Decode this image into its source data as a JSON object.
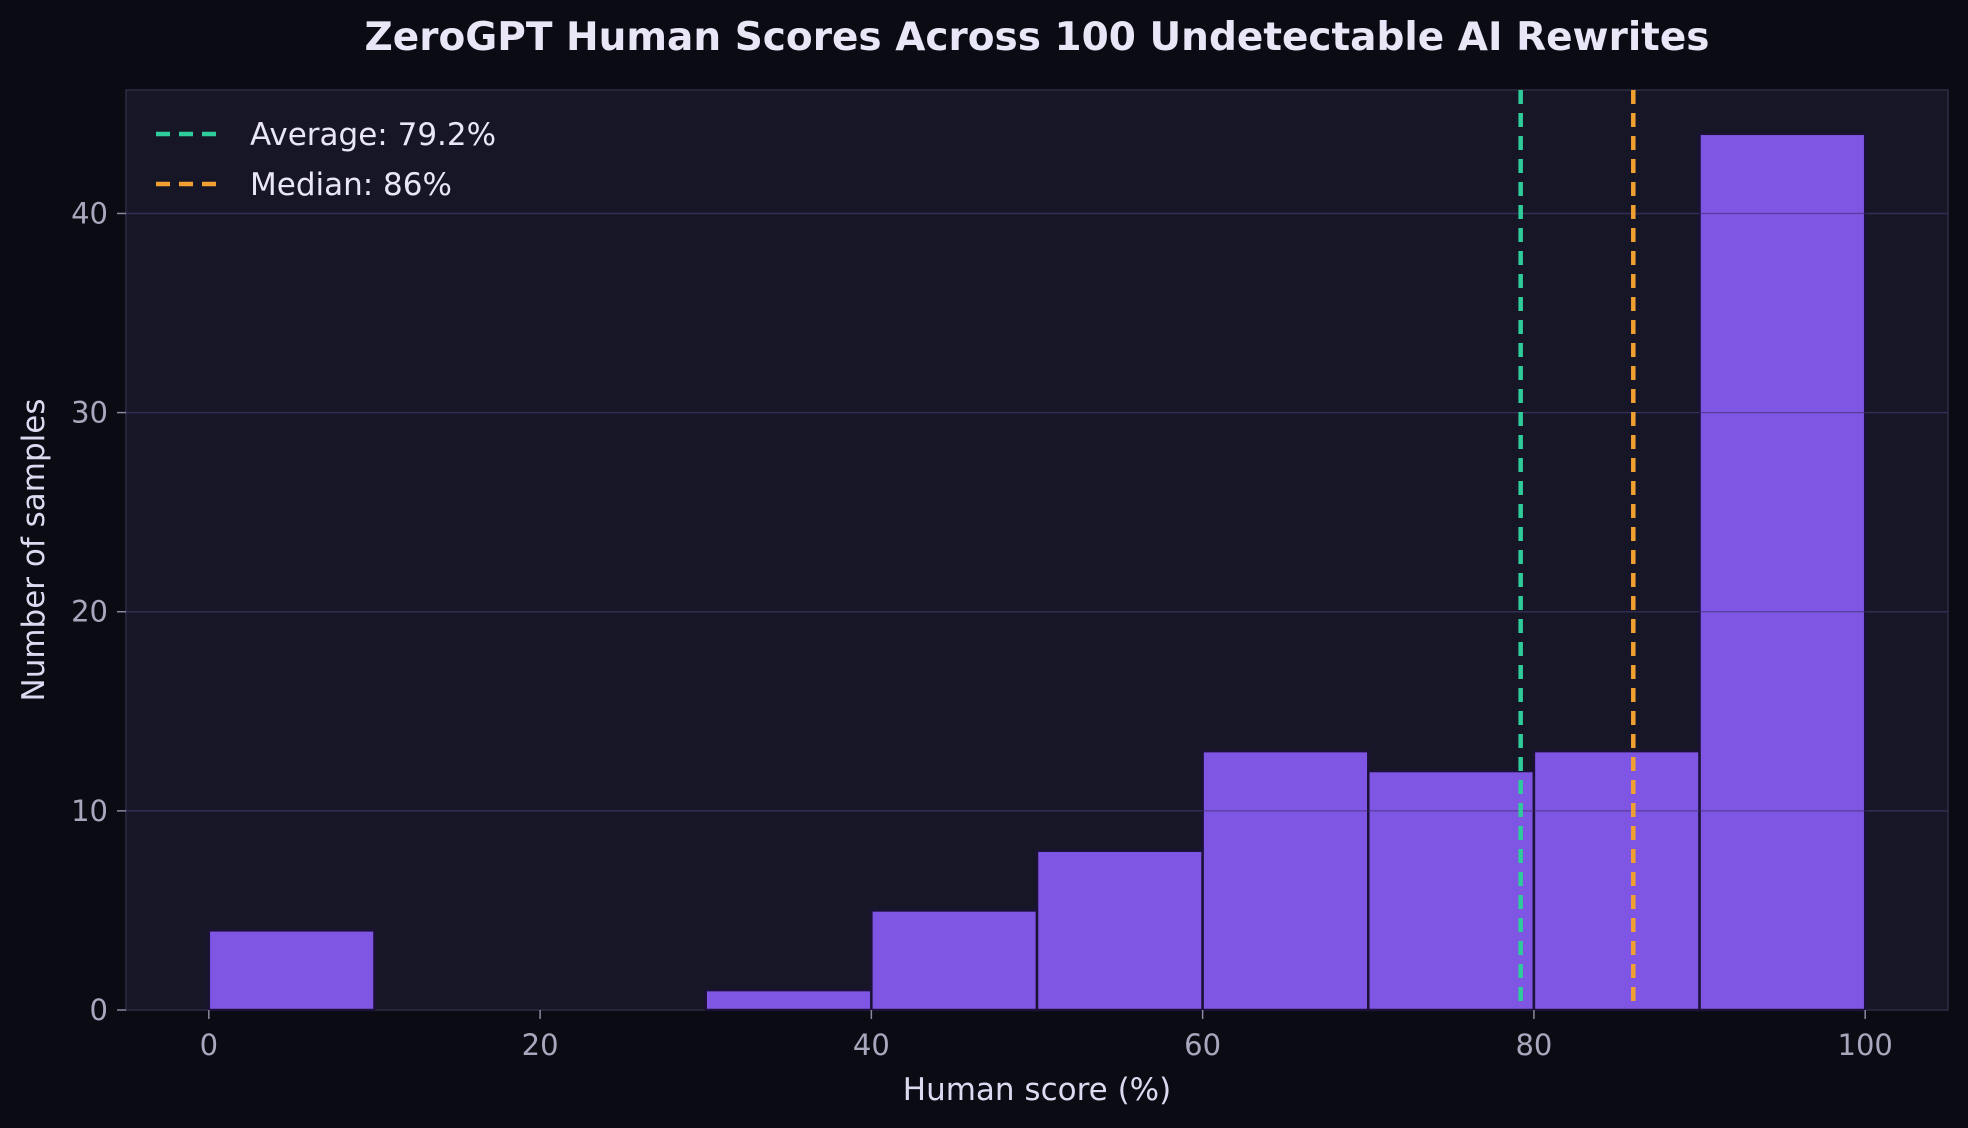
{
  "chart_data": {
    "type": "bar",
    "title": "ZeroGPT Human Scores Across 100 Undetectable AI Rewrites",
    "xlabel": "Human score (%)",
    "ylabel": "Number of samples",
    "xlim": [
      -5,
      105
    ],
    "ylim": [
      0,
      46.2
    ],
    "xticks": [
      0,
      20,
      40,
      60,
      80,
      100
    ],
    "yticks": [
      0,
      10,
      20,
      30,
      40
    ],
    "bins": [
      {
        "start": 0,
        "end": 10,
        "count": 4
      },
      {
        "start": 10,
        "end": 20,
        "count": 0
      },
      {
        "start": 20,
        "end": 30,
        "count": 0
      },
      {
        "start": 30,
        "end": 40,
        "count": 1
      },
      {
        "start": 40,
        "end": 50,
        "count": 5
      },
      {
        "start": 50,
        "end": 60,
        "count": 8
      },
      {
        "start": 60,
        "end": 70,
        "count": 13
      },
      {
        "start": 70,
        "end": 80,
        "count": 12
      },
      {
        "start": 80,
        "end": 90,
        "count": 13
      },
      {
        "start": 90,
        "end": 100,
        "count": 44
      }
    ],
    "reference_lines": [
      {
        "label": "Average: 79.2%",
        "value": 79.2,
        "color": "#2ecc9a"
      },
      {
        "label": "Median: 86%",
        "value": 86,
        "color": "#f0a030"
      }
    ],
    "grid": true,
    "legend_position": "top-left",
    "colors": {
      "bar_fill": "#7f56e4",
      "bar_edge": "#1c1238",
      "figure_background": "#0b0b14",
      "plot_background": "#171626"
    }
  }
}
